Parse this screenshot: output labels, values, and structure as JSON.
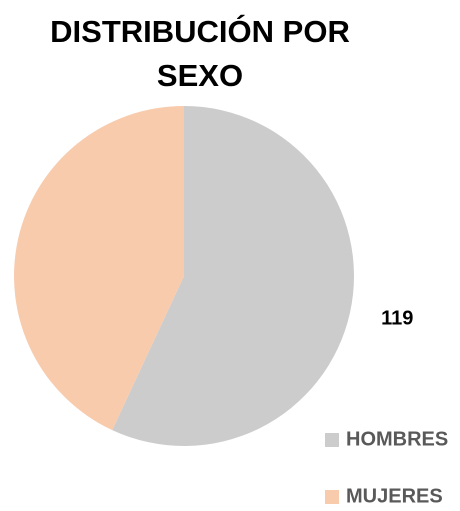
{
  "chart_data": {
    "type": "pie",
    "title": "DISTRIBUCIÓN POR SEXO",
    "categories": [
      "HOMBRES",
      "MUJERES"
    ],
    "values": [
      119,
      90
    ],
    "colors": [
      "#cccccc",
      "#f8cbad"
    ],
    "legend": "bottom-right"
  }
}
